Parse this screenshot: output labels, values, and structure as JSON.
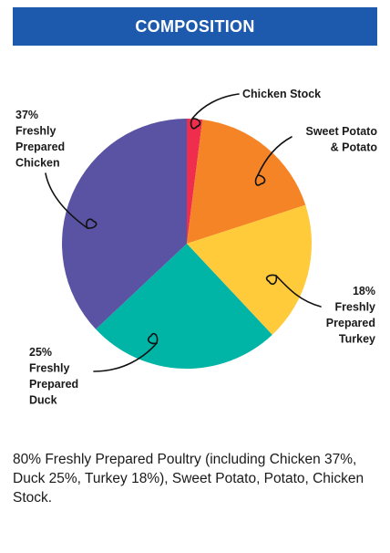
{
  "header": {
    "title": "COMPOSITION"
  },
  "chart_data": {
    "type": "pie",
    "title": "COMPOSITION",
    "slices": [
      {
        "name": "Chicken Stock",
        "value": 2,
        "color": "#ee2e4c",
        "label_lines": [
          "Chicken Stock"
        ]
      },
      {
        "name": "Sweet Potato & Potato",
        "value": 18,
        "color": "#f58426",
        "label_lines": [
          "Sweet Potato",
          "& Potato"
        ]
      },
      {
        "name": "Freshly Prepared Turkey",
        "value": 18,
        "color": "#ffcb3a",
        "label_lines": [
          "18%",
          "Freshly",
          "Prepared",
          "Turkey"
        ]
      },
      {
        "name": "Freshly Prepared Duck",
        "value": 25,
        "color": "#00b4a6",
        "label_lines": [
          "25%",
          "Freshly",
          "Prepared",
          "Duck"
        ]
      },
      {
        "name": "Freshly Prepared Chicken",
        "value": 37,
        "color": "#5a53a3",
        "label_lines": [
          "37%",
          "Freshly",
          "Prepared",
          "Chicken"
        ]
      }
    ]
  },
  "caption": {
    "text": "80% Freshly Prepared Poultry (including Chicken 37%, Duck 25%, Turkey 18%), Sweet Potato, Potato, Chicken Stock."
  }
}
